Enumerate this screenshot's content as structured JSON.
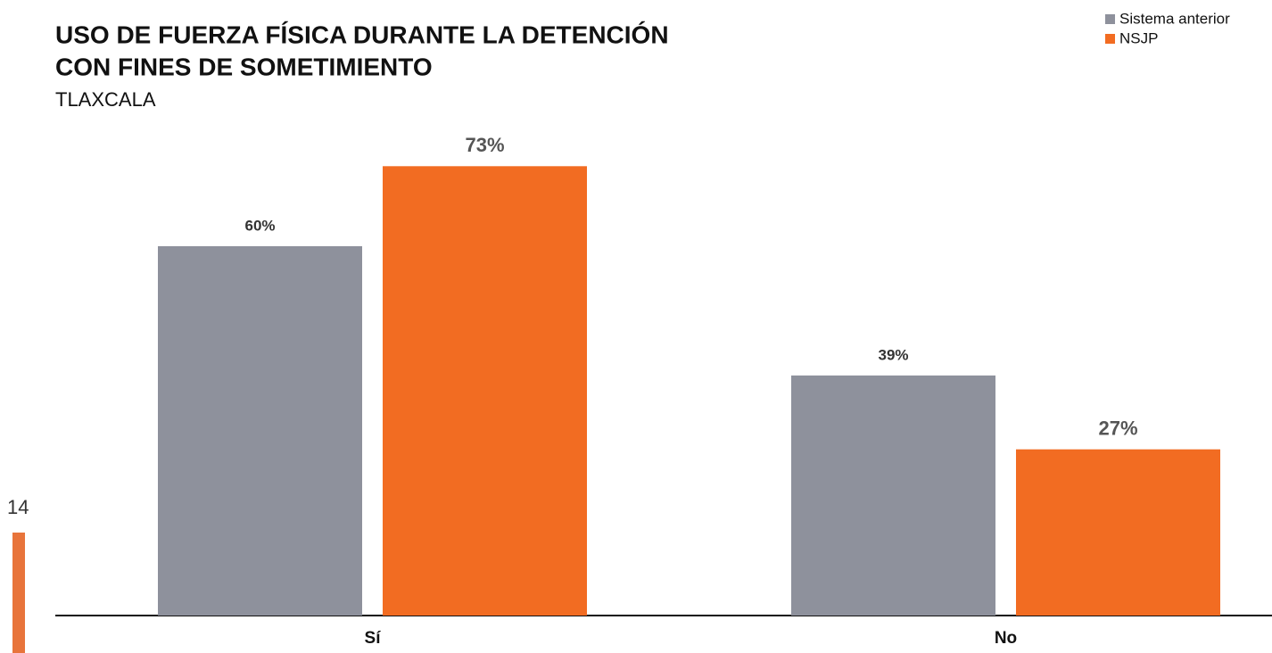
{
  "page_number": "14",
  "chart_data": {
    "type": "bar",
    "title": [
      "USO DE FUERZA FÍSICA DURANTE LA DETENCIÓN",
      "CON FINES DE SOMETIMIENTO"
    ],
    "subtitle": "TLAXCALA",
    "categories": [
      "Sí",
      "No"
    ],
    "series": [
      {
        "name": "Sistema anterior",
        "color": "#8e919c",
        "values": [
          60,
          39
        ],
        "value_labels": [
          "60%",
          "39%"
        ]
      },
      {
        "name": "NSJP",
        "color": "#f26c22",
        "values": [
          73,
          27
        ],
        "value_labels": [
          "73%",
          "27%"
        ]
      }
    ],
    "ylim": [
      0,
      100
    ],
    "legend": "top-right"
  }
}
